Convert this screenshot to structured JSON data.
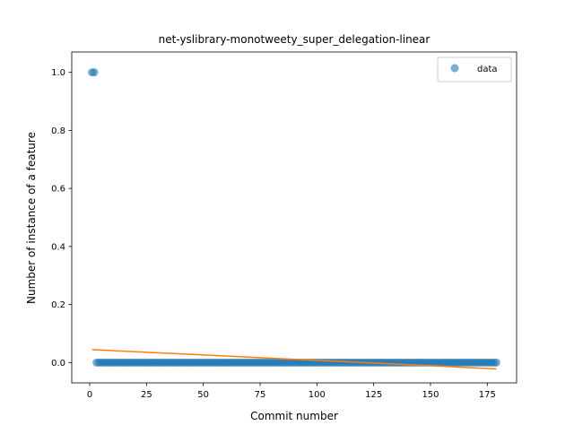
{
  "chart_data": {
    "type": "scatter",
    "title": "net-yslibrary-monotweety_super_delegation-linear",
    "xlabel": "Commit number",
    "ylabel": "Number of instance of a feature",
    "xlim": [
      -7.9,
      187.9
    ],
    "ylim": [
      -0.07,
      1.07
    ],
    "x_ticks": [
      0,
      25,
      50,
      75,
      100,
      125,
      150,
      175
    ],
    "y_ticks": [
      0.0,
      0.2,
      0.4,
      0.6,
      0.8,
      1.0
    ],
    "x_tick_labels": [
      "0",
      "25",
      "50",
      "75",
      "100",
      "125",
      "150",
      "175"
    ],
    "y_tick_labels": [
      "0.0",
      "0.2",
      "0.4",
      "0.6",
      "0.8",
      "1.0"
    ],
    "grid": false,
    "legend": {
      "entries": [
        "data"
      ],
      "placement": "top-right"
    },
    "series": [
      {
        "name": "data",
        "kind": "scatter",
        "color": "#1f77b4",
        "points_high": {
          "x": [
            1,
            2
          ],
          "y": 1.0
        },
        "points_low": {
          "x_start": 3,
          "x_end": 179,
          "y": 0.0
        }
      },
      {
        "kind": "line",
        "color": "#ff7f0e",
        "x": [
          1,
          179
        ],
        "y": [
          0.0446,
          -0.0218
        ]
      }
    ]
  }
}
